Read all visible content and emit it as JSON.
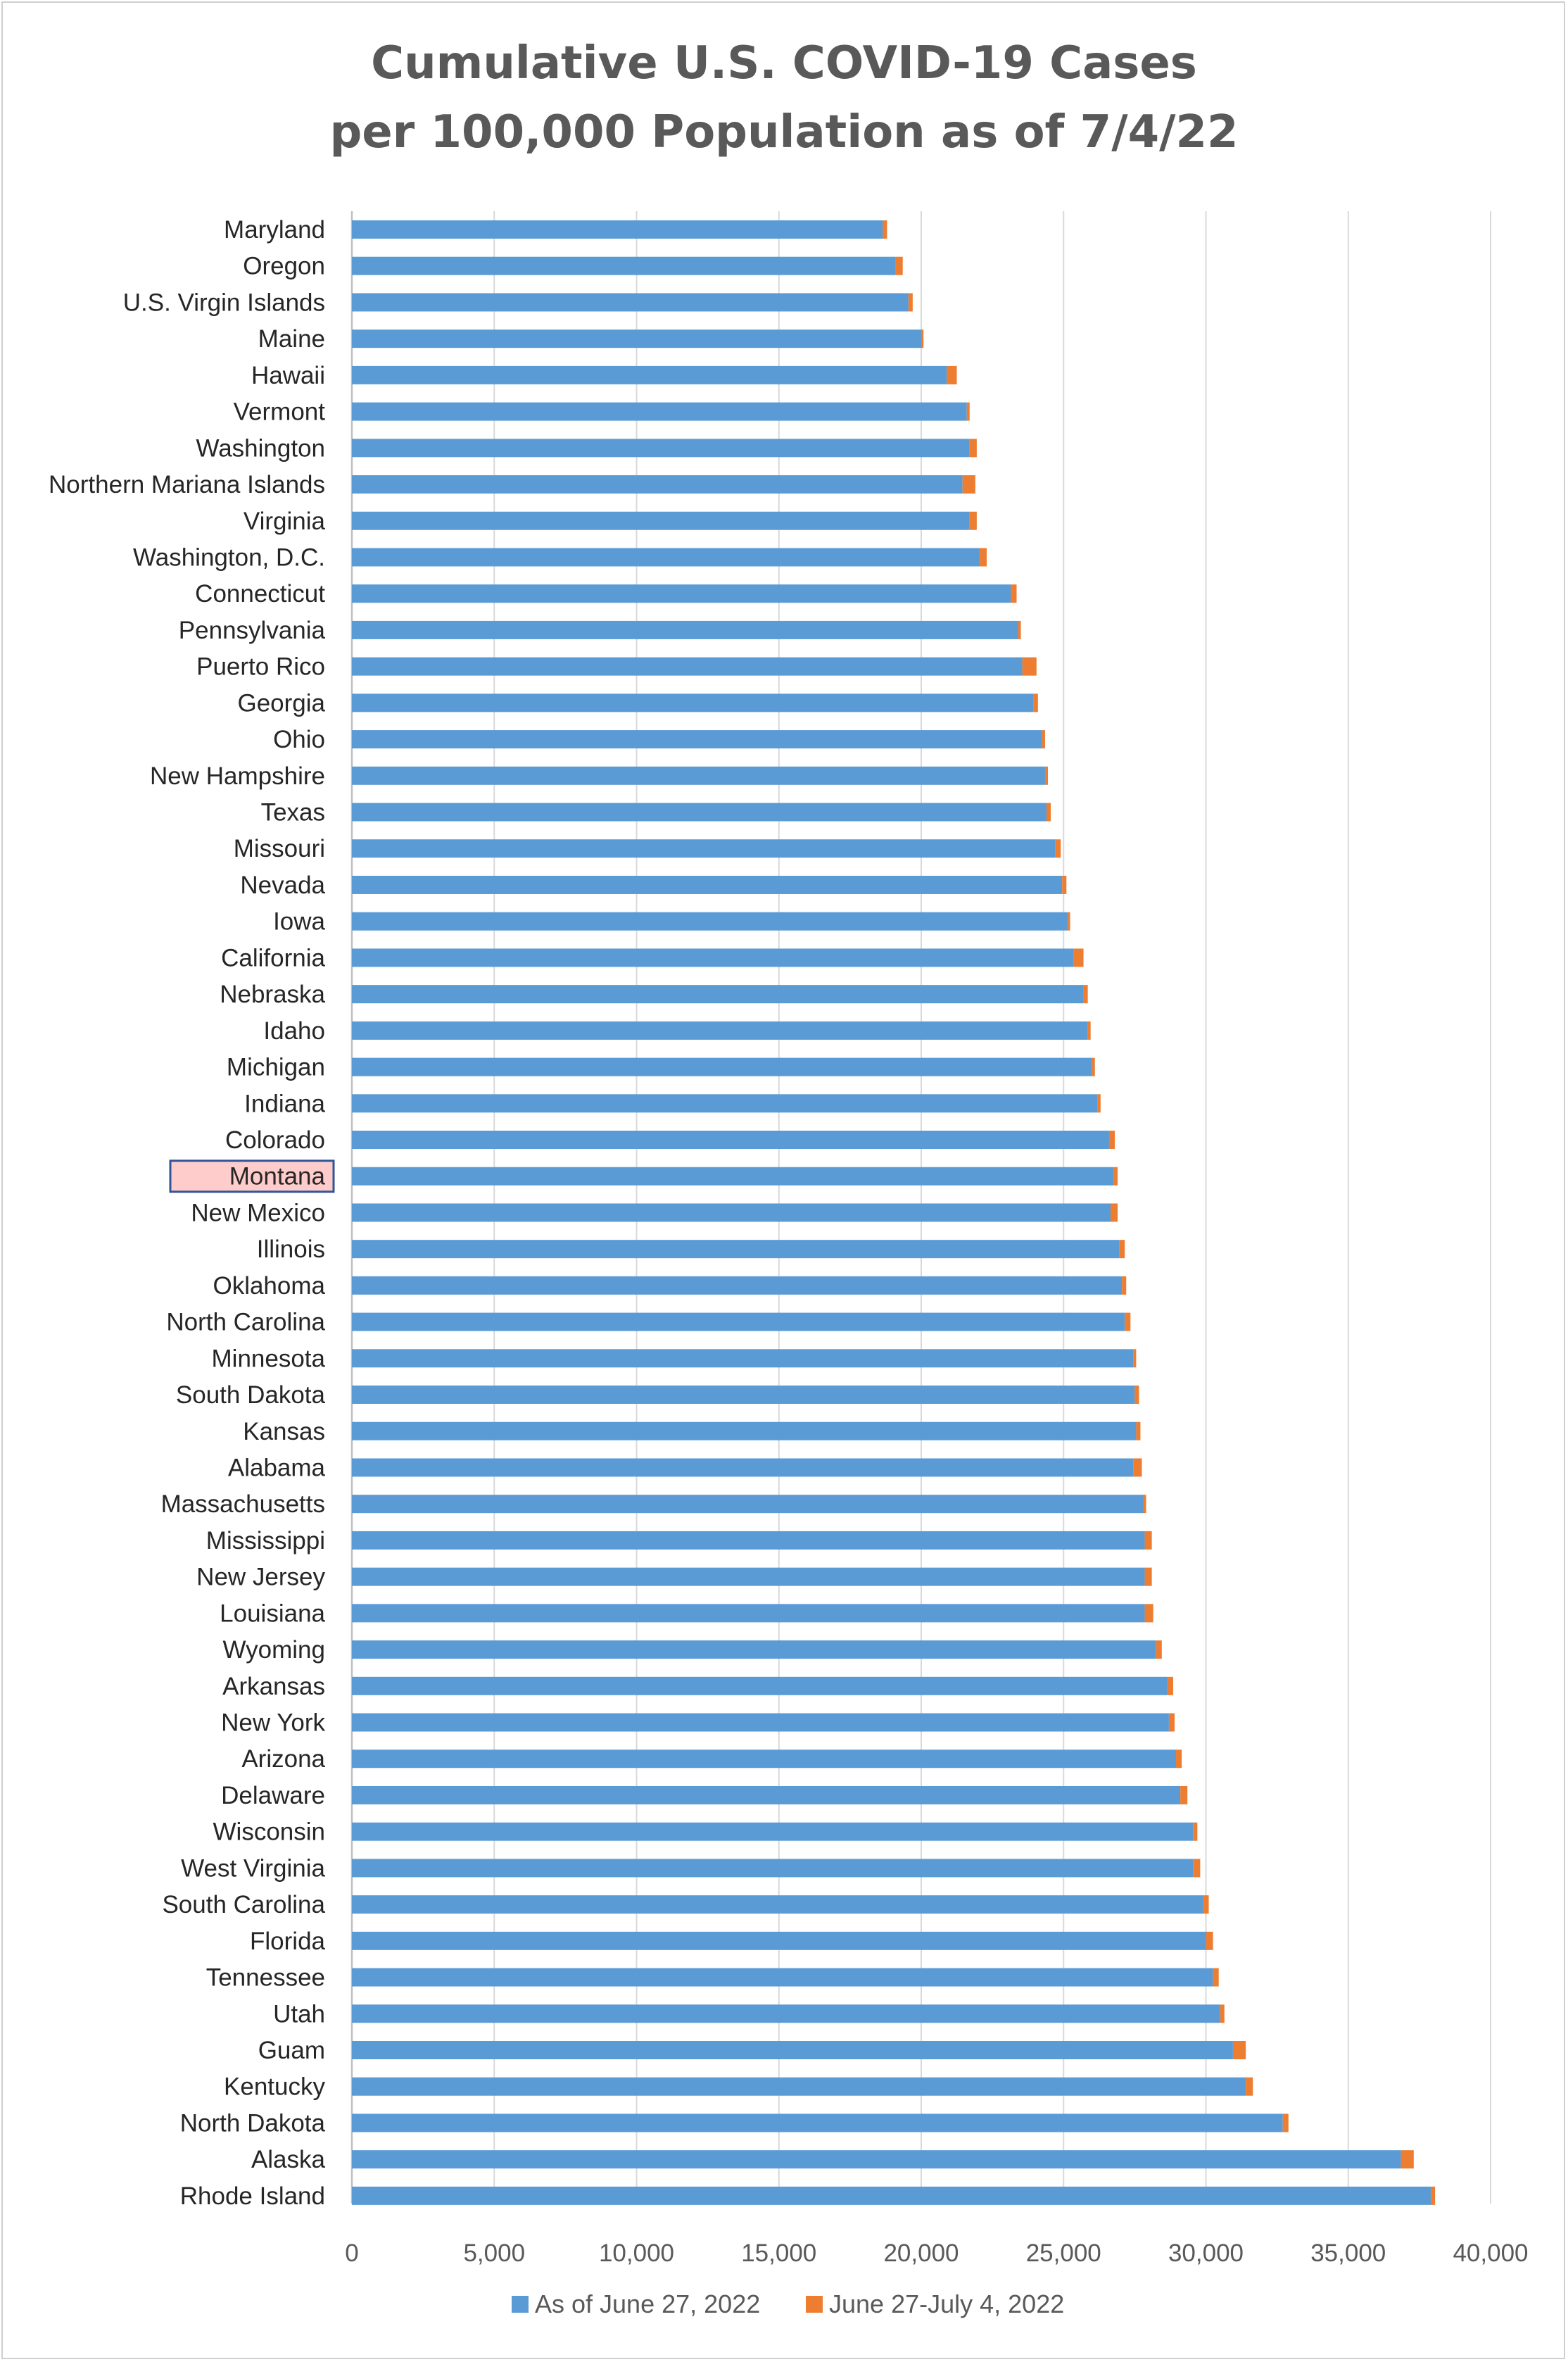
{
  "chart_data": {
    "type": "bar",
    "orientation": "horizontal",
    "stacked": true,
    "title_lines": [
      "Cumulative U.S. COVID-19 Cases",
      "per 100,000 Population as of 7/4/22"
    ],
    "xlim": [
      0,
      40000
    ],
    "xticks": [
      0,
      5000,
      10000,
      15000,
      20000,
      25000,
      30000,
      35000,
      40000
    ],
    "xtick_labels": [
      "0",
      "5,000",
      "10,000",
      "15,000",
      "20,000",
      "25,000",
      "30,000",
      "35,000",
      "40,000"
    ],
    "grid": "vertical",
    "legend_position": "bottom",
    "highlighted_category": "Montana",
    "categories": [
      "Maryland",
      "Oregon",
      "U.S. Virgin Islands",
      "Maine",
      "Hawaii",
      "Vermont",
      "Washington",
      "Northern Mariana Islands",
      "Virginia",
      "Washington, D.C.",
      "Connecticut",
      "Pennsylvania",
      "Puerto Rico",
      "Georgia",
      "Ohio",
      "New Hampshire",
      "Texas",
      "Missouri",
      "Nevada",
      "Iowa",
      "California",
      "Nebraska",
      "Idaho",
      "Michigan",
      "Indiana",
      "Colorado",
      "Montana",
      "New Mexico",
      "Illinois",
      "Oklahoma",
      "North Carolina",
      "Minnesota",
      "South Dakota",
      "Kansas",
      "Alabama",
      "Massachusetts",
      "Mississippi",
      "New Jersey",
      "Louisiana",
      "Wyoming",
      "Arkansas",
      "New York",
      "Arizona",
      "Delaware",
      "Wisconsin",
      "West Virginia",
      "South Carolina",
      "Florida",
      "Tennessee",
      "Utah",
      "Guam",
      "Kentucky",
      "North Dakota",
      "Alaska",
      "Rhode Island"
    ],
    "series": [
      {
        "name": "As of June 27, 2022",
        "color": "#5B9BD5",
        "values": [
          18650,
          19100,
          19550,
          20000,
          20900,
          21600,
          21700,
          21450,
          21700,
          22050,
          23150,
          23400,
          23550,
          23950,
          24250,
          24350,
          24400,
          24700,
          24950,
          25150,
          25350,
          25700,
          25850,
          26000,
          26200,
          26600,
          26750,
          26650,
          26950,
          27050,
          27150,
          27450,
          27500,
          27550,
          27450,
          27800,
          27850,
          27850,
          27850,
          28250,
          28650,
          28700,
          28950,
          29100,
          29550,
          29550,
          29900,
          30000,
          30250,
          30500,
          30950,
          31400,
          32700,
          36850,
          37900
        ]
      },
      {
        "name": "June 27-July 4, 2022",
        "color": "#ED7D31",
        "values": [
          150,
          250,
          150,
          80,
          350,
          100,
          250,
          450,
          250,
          250,
          200,
          100,
          500,
          150,
          100,
          100,
          150,
          200,
          150,
          80,
          350,
          150,
          100,
          100,
          100,
          200,
          150,
          250,
          200,
          150,
          200,
          100,
          150,
          150,
          300,
          100,
          250,
          250,
          300,
          200,
          200,
          200,
          200,
          250,
          150,
          250,
          200,
          250,
          200,
          150,
          450,
          250,
          200,
          450,
          150
        ]
      }
    ]
  }
}
